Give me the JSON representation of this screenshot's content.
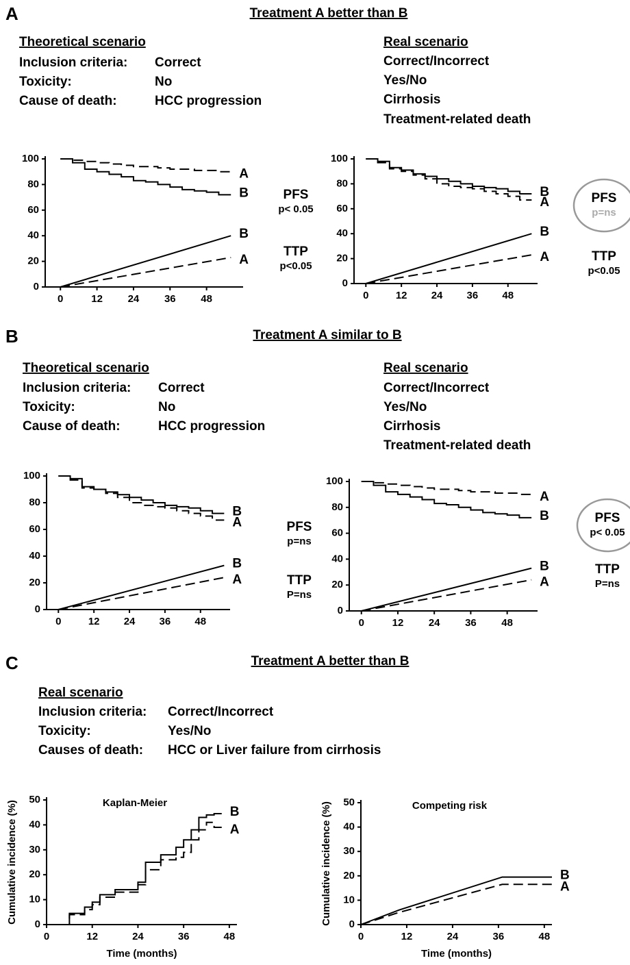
{
  "panels": [
    {
      "letter": "A",
      "title": "Treatment A better than B",
      "theoretical": {
        "heading": "Theoretical scenario",
        "labels": [
          "Inclusion criteria:",
          "Toxicity:",
          "Cause of death:"
        ],
        "values": [
          "Correct",
          "No",
          "HCC progression"
        ]
      },
      "real": {
        "heading": "Real scenario",
        "values": [
          "Correct/Incorrect",
          "Yes/No",
          "Cirrhosis",
          "Treatment-related death"
        ]
      }
    },
    {
      "letter": "B",
      "title": "Treatment A similar to B",
      "theoretical": {
        "heading": "Theoretical scenario",
        "labels": [
          "Inclusion criteria:",
          "Toxicity:",
          "Cause of death:"
        ],
        "values": [
          "Correct",
          "No",
          "HCC progression"
        ]
      },
      "real": {
        "heading": "Real scenario",
        "values": [
          "Correct/Incorrect",
          "Yes/No",
          "Cirrhosis",
          "Treatment-related death"
        ]
      }
    },
    {
      "letter": "C",
      "title": "Treatment A better than B",
      "real": {
        "heading": "Real scenario",
        "labels": [
          "Inclusion criteria:",
          "Toxicity:",
          "Causes of death:"
        ],
        "values": [
          "Correct/Incorrect",
          "Yes/No",
          "HCC or Liver failure from cirrhosis"
        ]
      }
    }
  ],
  "chart_data": [
    {
      "type": "line",
      "xlim": [
        -5,
        60
      ],
      "xticks": [
        0,
        12,
        24,
        36,
        48
      ],
      "ylim": [
        0,
        100
      ],
      "yticks": [
        0,
        20,
        40,
        60,
        80,
        100
      ],
      "series": [
        {
          "name": "A",
          "color": "#000",
          "dash": true,
          "step": true,
          "x": [
            0,
            4,
            8,
            12,
            16,
            20,
            24,
            28,
            32,
            36,
            40,
            44,
            48,
            52,
            56
          ],
          "values": [
            100,
            99,
            98,
            97,
            96,
            95,
            94,
            94,
            93,
            92,
            92,
            91,
            91,
            90,
            90
          ]
        },
        {
          "name": "B",
          "color": "#000",
          "dash": false,
          "step": true,
          "x": [
            0,
            4,
            8,
            12,
            16,
            20,
            24,
            28,
            32,
            36,
            40,
            44,
            48,
            52,
            56
          ],
          "values": [
            100,
            97,
            92,
            90,
            88,
            86,
            83,
            82,
            80,
            78,
            76,
            75,
            74,
            72,
            72
          ]
        },
        {
          "name": "B",
          "color": "#000",
          "dash": false,
          "step": false,
          "x": [
            0,
            56
          ],
          "values": [
            0,
            40
          ]
        },
        {
          "name": "A",
          "color": "#000",
          "dash": true,
          "step": false,
          "x": [
            0,
            56
          ],
          "values": [
            0,
            23
          ]
        }
      ],
      "annotations": [
        {
          "label": "PFS",
          "p": "p< 0.05",
          "circled": false
        },
        {
          "label": "TTP",
          "p": "p<0.05",
          "circled": false
        }
      ]
    },
    {
      "type": "line",
      "xlim": [
        -4,
        58
      ],
      "xticks": [
        0,
        12,
        24,
        36,
        48
      ],
      "ylim": [
        0,
        100
      ],
      "yticks": [
        0,
        20,
        40,
        60,
        80,
        100
      ],
      "series": [
        {
          "name": "B",
          "color": "#000",
          "dash": false,
          "step": true,
          "x": [
            0,
            4,
            8,
            12,
            16,
            20,
            24,
            28,
            32,
            36,
            40,
            44,
            48,
            52,
            56
          ],
          "values": [
            100,
            98,
            93,
            91,
            88,
            86,
            84,
            82,
            80,
            78,
            77,
            76,
            74,
            72,
            72
          ]
        },
        {
          "name": "A",
          "color": "#000",
          "dash": true,
          "step": true,
          "x": [
            0,
            4,
            8,
            12,
            16,
            20,
            24,
            28,
            32,
            36,
            40,
            44,
            48,
            52,
            56
          ],
          "values": [
            100,
            97,
            92,
            90,
            87,
            84,
            80,
            78,
            77,
            76,
            74,
            72,
            70,
            67,
            67
          ]
        },
        {
          "name": "B",
          "color": "#000",
          "dash": false,
          "step": false,
          "x": [
            0,
            56
          ],
          "values": [
            0,
            40
          ]
        },
        {
          "name": "A",
          "color": "#000",
          "dash": true,
          "step": false,
          "x": [
            0,
            56
          ],
          "values": [
            0,
            23
          ]
        }
      ],
      "annotations": [
        {
          "label": "PFS",
          "p": "p=ns",
          "p_color": "#aaa",
          "circled": true
        },
        {
          "label": "TTP",
          "p": "p<0.05",
          "circled": false
        }
      ]
    },
    {
      "type": "line",
      "xlim": [
        -4,
        58
      ],
      "xticks": [
        0,
        12,
        24,
        36,
        48
      ],
      "ylim": [
        0,
        100
      ],
      "yticks": [
        0,
        20,
        40,
        60,
        80,
        100
      ],
      "series": [
        {
          "name": "B",
          "color": "#000",
          "dash": false,
          "step": true,
          "x": [
            0,
            4,
            8,
            12,
            16,
            20,
            24,
            28,
            32,
            36,
            40,
            44,
            48,
            52,
            56
          ],
          "values": [
            100,
            98,
            92,
            90,
            88,
            86,
            84,
            82,
            80,
            78,
            77,
            76,
            74,
            72,
            72
          ]
        },
        {
          "name": "A",
          "color": "#000",
          "dash": true,
          "step": true,
          "x": [
            0,
            4,
            8,
            12,
            16,
            20,
            24,
            28,
            32,
            36,
            40,
            44,
            48,
            52,
            56
          ],
          "values": [
            100,
            97,
            91,
            90,
            87,
            84,
            80,
            78,
            77,
            76,
            74,
            72,
            70,
            67,
            67
          ]
        },
        {
          "name": "B",
          "color": "#000",
          "dash": false,
          "step": false,
          "x": [
            0,
            56
          ],
          "values": [
            0,
            33
          ]
        },
        {
          "name": "A",
          "color": "#000",
          "dash": true,
          "step": false,
          "x": [
            0,
            56
          ],
          "values": [
            0,
            24
          ]
        }
      ],
      "annotations": [
        {
          "label": "PFS",
          "p": "p=ns",
          "circled": false
        },
        {
          "label": "TTP",
          "p": "P=ns",
          "circled": false
        }
      ]
    },
    {
      "type": "line",
      "xlim": [
        -4,
        58
      ],
      "xticks": [
        0,
        12,
        24,
        36,
        48
      ],
      "ylim": [
        0,
        100
      ],
      "yticks": [
        0,
        20,
        40,
        60,
        80,
        100
      ],
      "series": [
        {
          "name": "A",
          "color": "#000",
          "dash": true,
          "step": true,
          "x": [
            0,
            4,
            8,
            12,
            16,
            20,
            24,
            28,
            32,
            36,
            40,
            44,
            48,
            52,
            56
          ],
          "values": [
            100,
            99,
            98,
            97,
            96,
            95,
            94,
            94,
            93,
            92,
            92,
            91,
            91,
            90,
            90
          ]
        },
        {
          "name": "B",
          "color": "#000",
          "dash": false,
          "step": true,
          "x": [
            0,
            4,
            8,
            12,
            16,
            20,
            24,
            28,
            32,
            36,
            40,
            44,
            48,
            52,
            56
          ],
          "values": [
            100,
            97,
            92,
            90,
            88,
            86,
            83,
            82,
            80,
            78,
            76,
            75,
            74,
            72,
            72
          ]
        },
        {
          "name": "B",
          "color": "#000",
          "dash": false,
          "step": false,
          "x": [
            0,
            56
          ],
          "values": [
            0,
            33
          ]
        },
        {
          "name": "A",
          "color": "#000",
          "dash": true,
          "step": false,
          "x": [
            0,
            56
          ],
          "values": [
            0,
            24
          ]
        }
      ],
      "annotations": [
        {
          "label": "PFS",
          "p": "p< 0.05",
          "circled": true
        },
        {
          "label": "TTP",
          "p": "P=ns",
          "circled": false
        }
      ]
    },
    {
      "type": "line",
      "title": "Kaplan-Meier",
      "xlabel": "Time (months)",
      "ylabel": "Cumulative incidence (%)",
      "xlim": [
        0,
        50
      ],
      "xticks": [
        0,
        12,
        24,
        36,
        48
      ],
      "ylim": [
        0,
        50
      ],
      "yticks": [
        0,
        10,
        20,
        30,
        40,
        50
      ],
      "series": [
        {
          "name": "B",
          "color": "#000",
          "dash": false,
          "step": true,
          "x": [
            0,
            6,
            10,
            12,
            14,
            18,
            24,
            26,
            30,
            34,
            36,
            38,
            40,
            42,
            44,
            46
          ],
          "values": [
            0,
            4.5,
            7,
            9,
            12,
            14,
            17,
            25,
            28,
            31,
            34,
            38,
            43,
            44,
            44.5,
            44.5
          ]
        },
        {
          "name": "A",
          "color": "#000",
          "dash": true,
          "step": true,
          "x": [
            0,
            6,
            10,
            12,
            14,
            18,
            24,
            26,
            30,
            34,
            36,
            38,
            40,
            42,
            44,
            46
          ],
          "values": [
            0,
            4,
            6,
            8,
            11,
            13,
            16,
            22,
            26,
            27,
            29,
            34,
            38,
            41,
            39,
            39
          ]
        }
      ]
    },
    {
      "type": "line",
      "title": "Competing risk",
      "xlabel": "Time (months)",
      "ylabel": "Cumulative incidence (%)",
      "xlim": [
        0,
        50
      ],
      "xticks": [
        0,
        12,
        24,
        36,
        48
      ],
      "ylim": [
        0,
        50
      ],
      "yticks": [
        0,
        10,
        20,
        30,
        40,
        50
      ],
      "series": [
        {
          "name": "B",
          "color": "#000",
          "dash": false,
          "step": false,
          "x": [
            0,
            10,
            37,
            50
          ],
          "values": [
            0,
            6,
            19.5,
            19.5
          ]
        },
        {
          "name": "A",
          "color": "#000",
          "dash": true,
          "step": false,
          "x": [
            0,
            10,
            37,
            50
          ],
          "values": [
            0,
            5,
            16.5,
            16.5
          ]
        }
      ]
    }
  ]
}
